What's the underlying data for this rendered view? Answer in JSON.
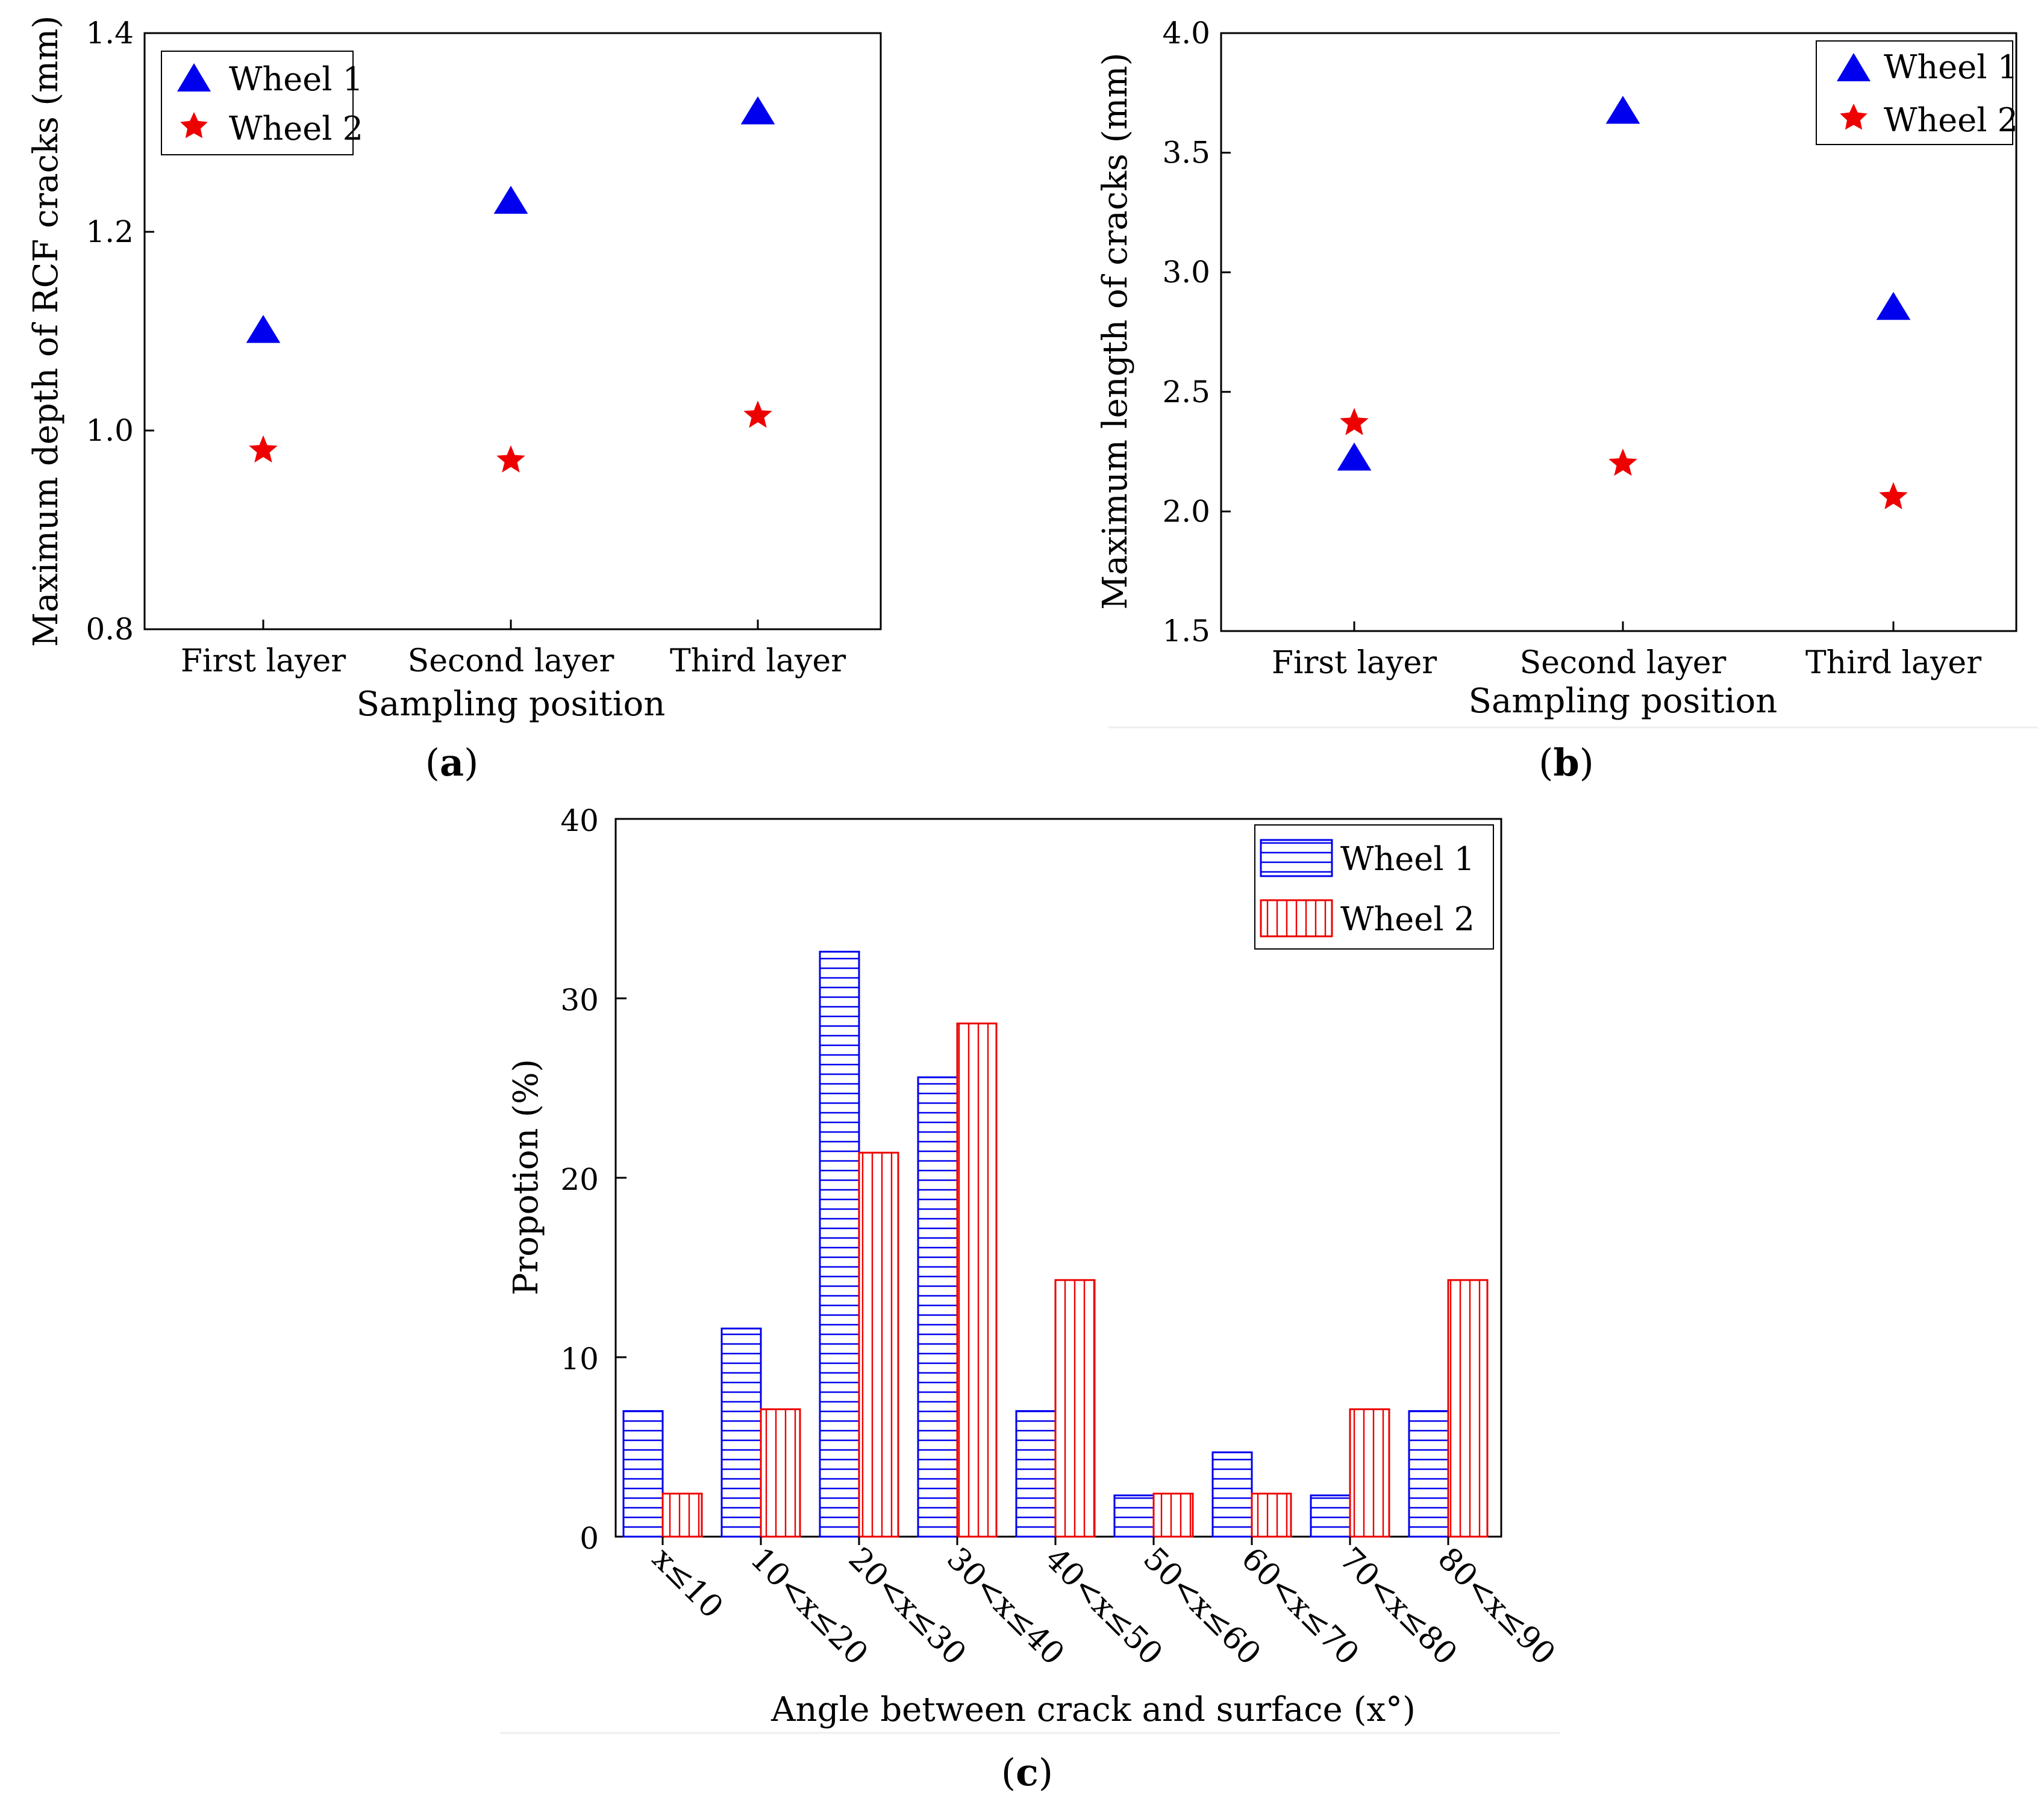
{
  "colors": {
    "wheel1": "#0000ee",
    "wheel2": "#ee0000",
    "axis": "#000000"
  },
  "chart_data": [
    {
      "id": "a",
      "type": "scatter",
      "panel_label": "a",
      "title": "",
      "xlabel": "Sampling position",
      "ylabel": "Maximum depth of RCF cracks (mm)",
      "categories": [
        "First layer",
        "Second layer",
        "Third layer"
      ],
      "ylim": [
        0.8,
        1.4
      ],
      "yticks": [
        "0.8",
        "1.0",
        "1.2",
        "1.4"
      ],
      "legend": "top-left",
      "series": [
        {
          "name": "Wheel 1",
          "marker": "triangle",
          "values": [
            1.1,
            1.23,
            1.32
          ]
        },
        {
          "name": "Wheel 2",
          "marker": "star",
          "values": [
            0.98,
            0.97,
            1.015
          ]
        }
      ]
    },
    {
      "id": "b",
      "type": "scatter",
      "panel_label": "b",
      "title": "",
      "xlabel": "Sampling position",
      "ylabel": "Maximum length of cracks (mm)",
      "categories": [
        "First layer",
        "Second layer",
        "Third layer"
      ],
      "ylim": [
        1.5,
        4.0
      ],
      "yticks": [
        "1.5",
        "2.0",
        "2.5",
        "3.0",
        "3.5",
        "4.0"
      ],
      "legend": "top-right",
      "series": [
        {
          "name": "Wheel 1",
          "marker": "triangle",
          "values": [
            2.22,
            3.67,
            2.85
          ]
        },
        {
          "name": "Wheel 2",
          "marker": "star",
          "values": [
            2.37,
            2.2,
            2.06
          ]
        }
      ]
    },
    {
      "id": "c",
      "type": "bar",
      "panel_label": "c",
      "title": "",
      "xlabel": "Angle between crack and surface (x°)",
      "ylabel": "Propotion (%)",
      "categories": [
        "x≤10",
        "10<x≤20",
        "20<x≤30",
        "30<x≤40",
        "40<x≤50",
        "50<x≤60",
        "60<x≤70",
        "70<x≤80",
        "80<x≤90"
      ],
      "ylim": [
        0,
        40
      ],
      "yticks": [
        "0",
        "10",
        "20",
        "30",
        "40"
      ],
      "legend": "top-right",
      "series": [
        {
          "name": "Wheel 1",
          "pattern": "horizontal-hatch",
          "values": [
            7.0,
            11.6,
            32.6,
            25.6,
            7.0,
            2.3,
            4.7,
            2.3,
            7.0
          ]
        },
        {
          "name": "Wheel 2",
          "pattern": "vertical-hatch",
          "values": [
            2.4,
            7.1,
            21.4,
            28.6,
            14.3,
            2.4,
            2.4,
            7.1,
            14.3
          ]
        }
      ]
    }
  ]
}
